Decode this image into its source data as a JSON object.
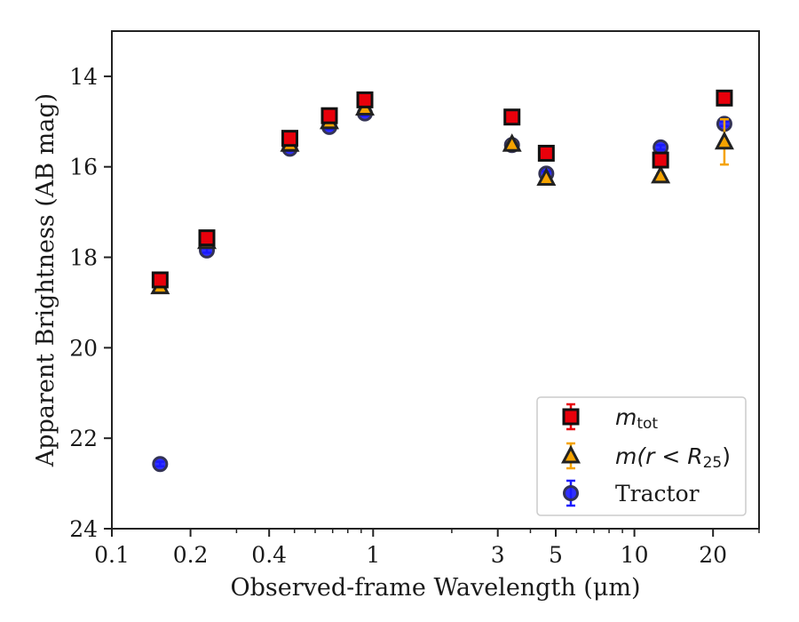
{
  "chart_data": {
    "type": "scatter",
    "title": "",
    "xlabel": "Observed-frame Wavelength (μm)",
    "ylabel": "Apparent Brightness (AB mag)",
    "x_scale": "log",
    "xlim": [
      0.1,
      30
    ],
    "ylim": [
      24,
      13
    ],
    "y_inverted": true,
    "grid": false,
    "legend_position": "bottom-right",
    "x_ticks": [
      {
        "value": 0.1,
        "label": "0.1"
      },
      {
        "value": 0.2,
        "label": "0.2"
      },
      {
        "value": 0.4,
        "label": "0.4"
      },
      {
        "value": 1,
        "label": "1"
      },
      {
        "value": 3,
        "label": "3"
      },
      {
        "value": 5,
        "label": "5"
      },
      {
        "value": 10,
        "label": "10"
      },
      {
        "value": 20,
        "label": "20"
      }
    ],
    "y_ticks": [
      {
        "value": 14,
        "label": "14"
      },
      {
        "value": 16,
        "label": "16"
      },
      {
        "value": 18,
        "label": "18"
      },
      {
        "value": 20,
        "label": "20"
      },
      {
        "value": 22,
        "label": "22"
      },
      {
        "value": 24,
        "label": "24"
      }
    ],
    "series": [
      {
        "name": "m_tot",
        "label_base": "m",
        "label_sub": "tot",
        "marker": "square",
        "color": "#e8000b",
        "errcolor": "#e8000b",
        "points": [
          {
            "x": 0.153,
            "y": 18.5,
            "err": 0.05
          },
          {
            "x": 0.231,
            "y": 17.57,
            "err": 0.05
          },
          {
            "x": 0.48,
            "y": 15.37,
            "err": 0.05
          },
          {
            "x": 0.68,
            "y": 14.87,
            "err": 0.05
          },
          {
            "x": 0.93,
            "y": 14.52,
            "err": 0.05
          },
          {
            "x": 3.4,
            "y": 14.9,
            "err": 0.05
          },
          {
            "x": 4.6,
            "y": 15.7,
            "err": 0.05
          },
          {
            "x": 12.6,
            "y": 15.85,
            "err": 0.05
          },
          {
            "x": 22.1,
            "y": 14.48,
            "err": 0.05
          }
        ]
      },
      {
        "name": "m(r < R_25)",
        "label_base": "m(r < R",
        "label_sub": "25",
        "label_end": ")",
        "marker": "triangle",
        "color": "#f5a300",
        "errcolor": "#f5a300",
        "points": [
          {
            "x": 0.153,
            "y": 18.65,
            "err": 0.05
          },
          {
            "x": 0.231,
            "y": 17.65,
            "err": 0.05
          },
          {
            "x": 0.48,
            "y": 15.5,
            "err": 0.05
          },
          {
            "x": 0.68,
            "y": 15.0,
            "err": 0.05
          },
          {
            "x": 0.93,
            "y": 14.7,
            "err": 0.05
          },
          {
            "x": 3.4,
            "y": 15.5,
            "err": 0.05
          },
          {
            "x": 4.6,
            "y": 16.25,
            "err": 0.05
          },
          {
            "x": 12.6,
            "y": 16.2,
            "err": 0.05
          },
          {
            "x": 22.1,
            "y": 15.45,
            "err": 0.5
          }
        ]
      },
      {
        "name": "Tractor",
        "label_base": "Tractor",
        "marker": "circle",
        "color": "#1a1aff",
        "errcolor": "#1a1aff",
        "points": [
          {
            "x": 0.153,
            "y": 22.57,
            "err": 0.05
          },
          {
            "x": 0.231,
            "y": 17.85,
            "err": 0.05
          },
          {
            "x": 0.48,
            "y": 15.6,
            "err": 0.05
          },
          {
            "x": 0.68,
            "y": 15.12,
            "err": 0.05
          },
          {
            "x": 0.93,
            "y": 14.82,
            "err": 0.05
          },
          {
            "x": 3.4,
            "y": 15.52,
            "err": 0.05
          },
          {
            "x": 4.6,
            "y": 16.15,
            "err": 0.05
          },
          {
            "x": 12.6,
            "y": 15.57,
            "err": 0.05
          },
          {
            "x": 22.1,
            "y": 15.05,
            "err": 0.05
          }
        ]
      }
    ]
  }
}
